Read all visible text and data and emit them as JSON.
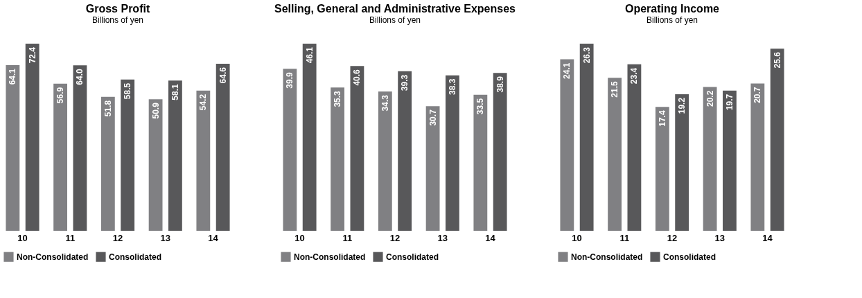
{
  "chart_data": [
    {
      "type": "bar",
      "title": "Gross Profit",
      "subtitle": "Billions of yen",
      "categories": [
        "10",
        "11",
        "12",
        "13",
        "14"
      ],
      "data_labels": true,
      "legend": "bottom left",
      "tick_labels": "x",
      "series": [
        {
          "name": "Non-Consolidated",
          "color": "#808083",
          "values": [
            64.1,
            56.9,
            51.8,
            50.9,
            54.2
          ]
        },
        {
          "name": "Consolidated",
          "color": "#58585a",
          "values": [
            72.4,
            64.0,
            58.5,
            58.1,
            64.6
          ],
          "value_labels": [
            "72.4",
            "64.0",
            "58.5",
            "58.1",
            "64.6"
          ]
        }
      ]
    },
    {
      "type": "bar",
      "title": "Selling, General and Administrative Expenses",
      "subtitle": "Billions of yen",
      "categories": [
        "10",
        "11",
        "12",
        "13",
        "14"
      ],
      "data_labels": true,
      "legend": "bottom left",
      "tick_labels": "x",
      "series": [
        {
          "name": "Non-Consolidated",
          "color": "#808083",
          "values": [
            39.9,
            35.3,
            34.3,
            30.7,
            33.5
          ]
        },
        {
          "name": "Consolidated",
          "color": "#58585a",
          "values": [
            46.1,
            40.6,
            39.3,
            38.3,
            38.9
          ]
        }
      ]
    },
    {
      "type": "bar",
      "title": "Operating Income",
      "subtitle": "Billions of yen",
      "categories": [
        "10",
        "11",
        "12",
        "13",
        "14"
      ],
      "data_labels": true,
      "legend": "bottom left",
      "tick_labels": "x",
      "series": [
        {
          "name": "Non-Consolidated",
          "color": "#808083",
          "values": [
            24.1,
            21.5,
            17.4,
            20.2,
            20.7
          ]
        },
        {
          "name": "Consolidated",
          "color": "#58585a",
          "values": [
            26.3,
            23.4,
            19.2,
            19.7,
            25.6
          ]
        }
      ]
    }
  ]
}
